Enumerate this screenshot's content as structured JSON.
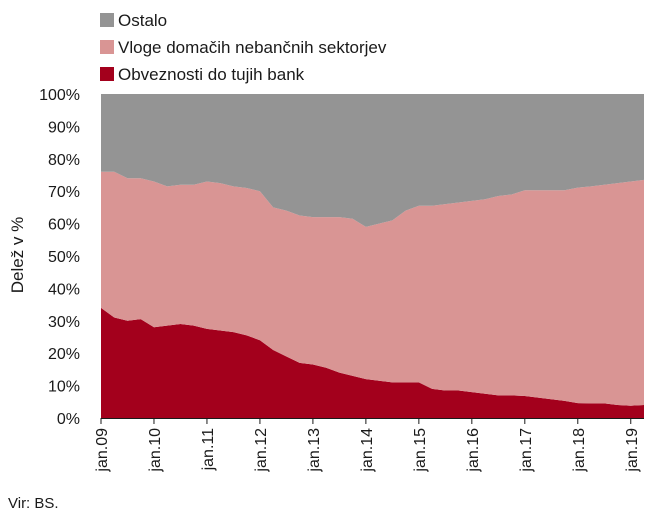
{
  "chart_data": {
    "type": "area",
    "stacked": true,
    "percent_stacked": true,
    "title": "",
    "xlabel": "",
    "ylabel": "Delež v %",
    "ylim": [
      0,
      100
    ],
    "yticks": [
      "0%",
      "10%",
      "20%",
      "30%",
      "40%",
      "50%",
      "60%",
      "70%",
      "80%",
      "90%",
      "100%"
    ],
    "xticks": [
      "jan.09",
      "jan.10",
      "jan.11",
      "jan.12",
      "jan.13",
      "jan.14",
      "jan.15",
      "jan.16",
      "jan.17",
      "jan.18",
      "jan.19"
    ],
    "grid": false,
    "legend_position": "top-left",
    "colors": {
      "Ostalo": "#949494",
      "Vloge domačih nebančnih sektorjev": "#d99594",
      "Obveznosti do tujih bank": "#a3001c"
    },
    "x": [
      "jan.09",
      "apr.09",
      "jul.09",
      "okt.09",
      "jan.10",
      "apr.10",
      "jul.10",
      "okt.10",
      "jan.11",
      "apr.11",
      "jul.11",
      "okt.11",
      "jan.12",
      "apr.12",
      "jul.12",
      "okt.12",
      "jan.13",
      "apr.13",
      "jul.13",
      "okt.13",
      "jan.14",
      "apr.14",
      "jul.14",
      "okt.14",
      "jan.15",
      "apr.15",
      "jul.15",
      "okt.15",
      "jan.16",
      "apr.16",
      "jul.16",
      "okt.16",
      "jan.17",
      "apr.17",
      "jul.17",
      "okt.17",
      "jan.18",
      "apr.18",
      "jul.18",
      "okt.18",
      "jan.19",
      "apr.19"
    ],
    "series": [
      {
        "name": "Obveznosti do tujih bank",
        "values": [
          34,
          31,
          30,
          30.5,
          28,
          28.5,
          29,
          28.5,
          27.5,
          27,
          26.5,
          25.5,
          24,
          21,
          19,
          17,
          16.5,
          15.5,
          14,
          13,
          12,
          11.5,
          11,
          11,
          11,
          9,
          8.5,
          8.5,
          8,
          7.5,
          7,
          7,
          6.8,
          6.3,
          5.8,
          5.3,
          4.6,
          4.5,
          4.5,
          4,
          3.8,
          4
        ]
      },
      {
        "name": "Vloge domačih nebančnih sektorjev",
        "values": [
          42,
          45,
          44,
          43.5,
          45,
          43,
          43,
          43.5,
          45.5,
          45.5,
          45,
          45.5,
          46,
          44,
          45,
          45.5,
          45.5,
          46.5,
          48,
          48.5,
          47,
          48.5,
          50,
          53,
          54.5,
          56.5,
          57.5,
          58,
          59,
          60,
          61.5,
          62,
          63.5,
          64,
          64.5,
          65,
          66.5,
          67,
          67.5,
          68.5,
          69.2,
          69.5
        ]
      },
      {
        "name": "Ostalo",
        "values": [
          24,
          24,
          26,
          26,
          27,
          28.5,
          28,
          28,
          27,
          27.5,
          28.5,
          29,
          30,
          35,
          36,
          37.5,
          38,
          38,
          38,
          38.5,
          41,
          40,
          39,
          36,
          34.5,
          34.5,
          34,
          33.5,
          33,
          32.5,
          31.5,
          31,
          29.7,
          29.7,
          29.7,
          29.7,
          28.9,
          28.5,
          28,
          27.5,
          27,
          26.5
        ]
      }
    ],
    "source": "Vir: BS."
  }
}
